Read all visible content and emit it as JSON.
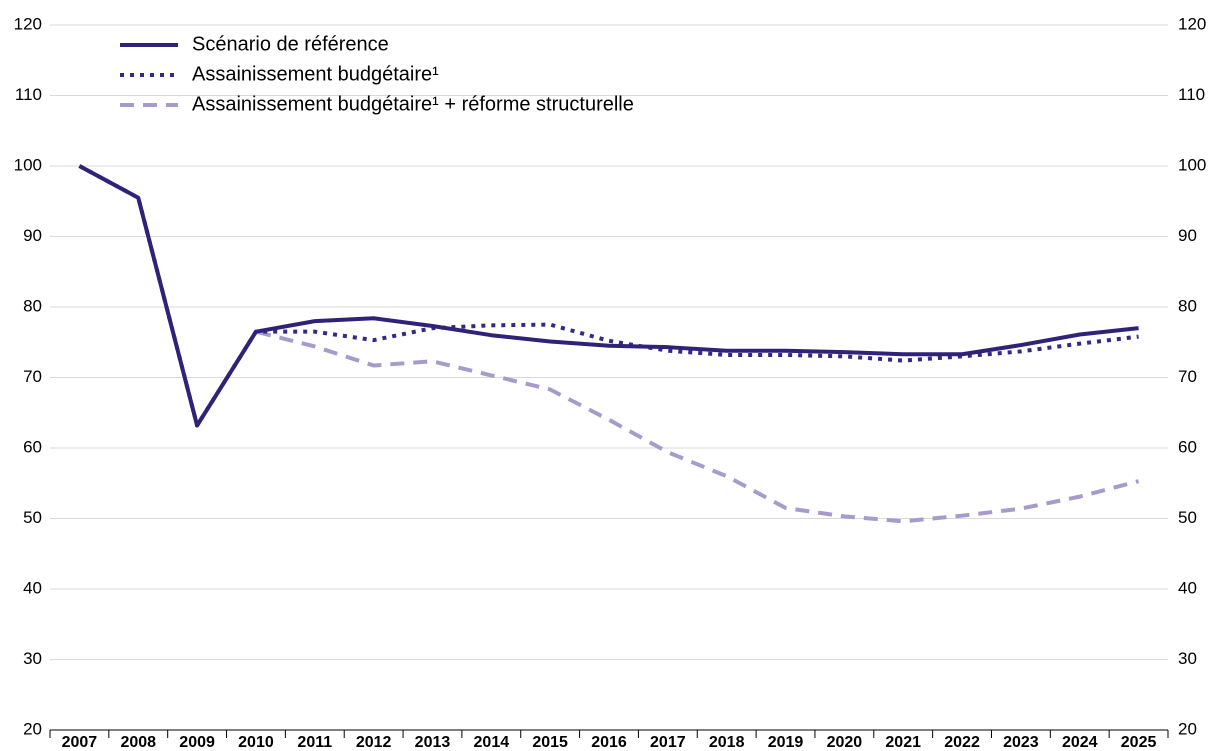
{
  "chart_data": {
    "type": "line",
    "categories": [
      "2007",
      "2008",
      "2009",
      "2010",
      "2011",
      "2012",
      "2013",
      "2014",
      "2015",
      "2016",
      "2017",
      "2018",
      "2019",
      "2020",
      "2021",
      "2022",
      "2023",
      "2024",
      "2025"
    ],
    "series": [
      {
        "name": "Scénario de référence",
        "color": "#2f2278",
        "dash": "solid",
        "values": [
          100,
          95.5,
          63.2,
          76.5,
          78,
          78.4,
          77.3,
          76,
          75.1,
          74.5,
          74.3,
          73.8,
          73.8,
          73.6,
          73.3,
          73.3,
          74.6,
          76.1,
          77
        ]
      },
      {
        "name": "Assainissement budgétaire¹",
        "color": "#34288a",
        "dash": "dotted",
        "values": [
          100,
          95.5,
          63.2,
          76.5,
          76.5,
          75.3,
          77,
          77.4,
          77.5,
          75.2,
          73.8,
          73.2,
          73.2,
          73,
          72.4,
          73,
          73.7,
          74.8,
          75.8
        ]
      },
      {
        "name": "Assainissement budgétaire¹ + réforme structurelle",
        "color": "#a79bcb",
        "dash": "dashed",
        "values": [
          100,
          95.5,
          63.2,
          76.5,
          74.4,
          71.7,
          72.3,
          70.3,
          68.3,
          64,
          59.4,
          56,
          51.5,
          50.3,
          49.6,
          50.4,
          51.4,
          53.1,
          55.3
        ]
      }
    ],
    "ylim": [
      20,
      120
    ],
    "yticks": [
      20,
      30,
      40,
      50,
      60,
      70,
      80,
      90,
      100,
      110,
      120
    ],
    "y2lim": [
      20,
      120
    ],
    "y2ticks": [
      20,
      30,
      40,
      50,
      60,
      70,
      80,
      90,
      100,
      110,
      120
    ],
    "grid": true,
    "legend": "upper left"
  }
}
